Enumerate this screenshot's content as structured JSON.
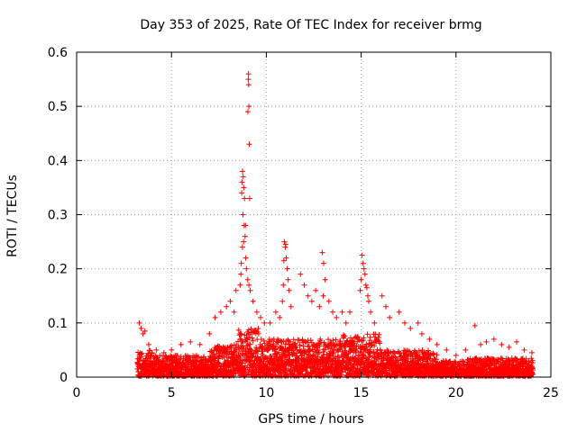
{
  "chart_data": {
    "type": "scatter",
    "title": "Day 353 of 2025, Rate Of TEC Index for receiver brmg",
    "xlabel": "GPS time / hours",
    "ylabel": "ROTI / TECUs",
    "xlim": [
      0,
      25
    ],
    "ylim": [
      0,
      0.6
    ],
    "xticks": [
      0,
      5,
      10,
      15,
      20,
      25
    ],
    "xtick_labels": [
      "0",
      "5",
      "10",
      "15",
      "20",
      "25"
    ],
    "yticks": [
      0,
      0.1,
      0.2,
      0.3,
      0.4,
      0.5,
      0.6
    ],
    "ytick_labels": [
      "0",
      "0.1",
      "0.2",
      "0.3",
      "0.4",
      "0.5",
      "0.6"
    ],
    "grid": true,
    "marker": "+",
    "color": "#ff0000",
    "series": [
      {
        "name": "ROTI",
        "points": [
          [
            8.75,
            0.38
          ],
          [
            8.78,
            0.37
          ],
          [
            8.72,
            0.36
          ],
          [
            8.81,
            0.35
          ],
          [
            8.7,
            0.34
          ],
          [
            8.85,
            0.33
          ],
          [
            8.77,
            0.3
          ],
          [
            8.83,
            0.28
          ],
          [
            8.9,
            0.28
          ],
          [
            8.88,
            0.26
          ],
          [
            8.8,
            0.25
          ],
          [
            8.74,
            0.24
          ],
          [
            8.92,
            0.22
          ],
          [
            8.68,
            0.21
          ],
          [
            8.95,
            0.2
          ],
          [
            8.66,
            0.19
          ],
          [
            9.02,
            0.18
          ],
          [
            8.62,
            0.17
          ],
          [
            9.08,
            0.17
          ],
          [
            9.15,
            0.16
          ],
          [
            9.06,
            0.56
          ],
          [
            9.05,
            0.55
          ],
          [
            9.07,
            0.54
          ],
          [
            9.08,
            0.5
          ],
          [
            9.03,
            0.49
          ],
          [
            9.1,
            0.43
          ],
          [
            9.12,
            0.33
          ],
          [
            10.95,
            0.25
          ],
          [
            11.02,
            0.245
          ],
          [
            11.0,
            0.24
          ],
          [
            11.05,
            0.22
          ],
          [
            10.92,
            0.215
          ],
          [
            11.1,
            0.2
          ],
          [
            11.15,
            0.18
          ],
          [
            10.9,
            0.17
          ],
          [
            11.2,
            0.16
          ],
          [
            10.85,
            0.14
          ],
          [
            11.3,
            0.13
          ],
          [
            11.8,
            0.19
          ],
          [
            12.0,
            0.17
          ],
          [
            12.2,
            0.15
          ],
          [
            12.4,
            0.14
          ],
          [
            12.6,
            0.16
          ],
          [
            12.8,
            0.13
          ],
          [
            13.0,
            0.15
          ],
          [
            12.95,
            0.23
          ],
          [
            13.02,
            0.21
          ],
          [
            13.1,
            0.18
          ],
          [
            13.3,
            0.14
          ],
          [
            13.5,
            0.12
          ],
          [
            13.7,
            0.11
          ],
          [
            14.0,
            0.12
          ],
          [
            14.2,
            0.1
          ],
          [
            14.4,
            0.12
          ],
          [
            15.05,
            0.225
          ],
          [
            15.1,
            0.21
          ],
          [
            15.15,
            0.2
          ],
          [
            15.2,
            0.19
          ],
          [
            15.0,
            0.18
          ],
          [
            15.25,
            0.17
          ],
          [
            15.3,
            0.165
          ],
          [
            14.95,
            0.16
          ],
          [
            15.35,
            0.15
          ],
          [
            15.4,
            0.14
          ],
          [
            15.5,
            0.12
          ],
          [
            15.7,
            0.1
          ],
          [
            16.1,
            0.15
          ],
          [
            16.3,
            0.13
          ],
          [
            16.5,
            0.11
          ],
          [
            17.0,
            0.12
          ],
          [
            17.3,
            0.1
          ],
          [
            17.6,
            0.09
          ],
          [
            18.0,
            0.1
          ],
          [
            18.2,
            0.08
          ],
          [
            18.6,
            0.07
          ],
          [
            19.0,
            0.06
          ],
          [
            19.5,
            0.05
          ],
          [
            20.0,
            0.04
          ],
          [
            20.5,
            0.05
          ],
          [
            21.0,
            0.095
          ],
          [
            21.3,
            0.06
          ],
          [
            21.6,
            0.065
          ],
          [
            22.0,
            0.07
          ],
          [
            22.4,
            0.06
          ],
          [
            22.8,
            0.055
          ],
          [
            23.2,
            0.065
          ],
          [
            23.6,
            0.05
          ],
          [
            24.0,
            0.045
          ],
          [
            7.3,
            0.11
          ],
          [
            7.6,
            0.12
          ],
          [
            7.9,
            0.13
          ],
          [
            8.1,
            0.14
          ],
          [
            8.3,
            0.12
          ],
          [
            8.4,
            0.16
          ],
          [
            9.3,
            0.14
          ],
          [
            9.5,
            0.12
          ],
          [
            9.7,
            0.11
          ],
          [
            9.9,
            0.1
          ],
          [
            10.2,
            0.1
          ],
          [
            10.5,
            0.12
          ],
          [
            10.7,
            0.11
          ],
          [
            3.3,
            0.1
          ],
          [
            3.4,
            0.09
          ],
          [
            3.5,
            0.08
          ],
          [
            3.6,
            0.085
          ],
          [
            3.8,
            0.06
          ],
          [
            4.2,
            0.05
          ],
          [
            4.6,
            0.045
          ],
          [
            5.0,
            0.05
          ],
          [
            5.5,
            0.06
          ],
          [
            6.0,
            0.065
          ],
          [
            6.5,
            0.06
          ],
          [
            7.0,
            0.08
          ]
        ]
      }
    ]
  }
}
